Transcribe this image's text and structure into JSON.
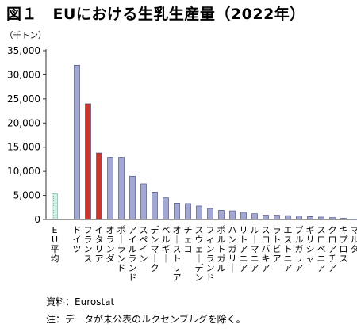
{
  "header": {
    "title": "図１　EUにおける生乳生産量（2022年）",
    "unit": "（千トン）"
  },
  "footer": {
    "source": "資料：Eurostat",
    "note": "注：データが未公表のルクセンブルグを除く。"
  },
  "colors": {
    "average": "#d6efe6",
    "highlight": "#c8372d",
    "normal": "#a3a8d2",
    "axis": "#333333"
  },
  "chart_data": {
    "type": "bar",
    "title": "EUにおける生乳生産量（2022年）",
    "ylabel": "（千トン）",
    "xlabel": "",
    "ylim": [
      0,
      35000
    ],
    "yticks": [
      "0",
      "5,000",
      "10,000",
      "15,000",
      "20,000",
      "25,000",
      "30,000",
      "35,000"
    ],
    "grid": false,
    "categories": [
      "EU平均",
      "ドイツ",
      "フランス",
      "イタリア",
      "オランダ",
      "ポーランド",
      "アイルランド",
      "スペイン",
      "デンマーク",
      "ベルギー",
      "オーストリア",
      "チェコ",
      "スウェーデン",
      "フィンランド",
      "ポルトガル",
      "ハンガリー",
      "リトアニア",
      "ルーマニア",
      "スロバキア",
      "ラトビア",
      "エストニア",
      "ブルガリア",
      "ギリシャ",
      "スロベニア",
      "クロアチア",
      "キプロス",
      "マルタ"
    ],
    "values": [
      5400,
      32000,
      24000,
      13800,
      12900,
      12900,
      9000,
      7400,
      5700,
      4500,
      3400,
      3300,
      2800,
      2300,
      1900,
      1800,
      1500,
      1200,
      900,
      900,
      800,
      700,
      600,
      500,
      400,
      250,
      40
    ],
    "highlight": [
      "フランス",
      "イタリア"
    ],
    "average": [
      "EU平均"
    ]
  }
}
